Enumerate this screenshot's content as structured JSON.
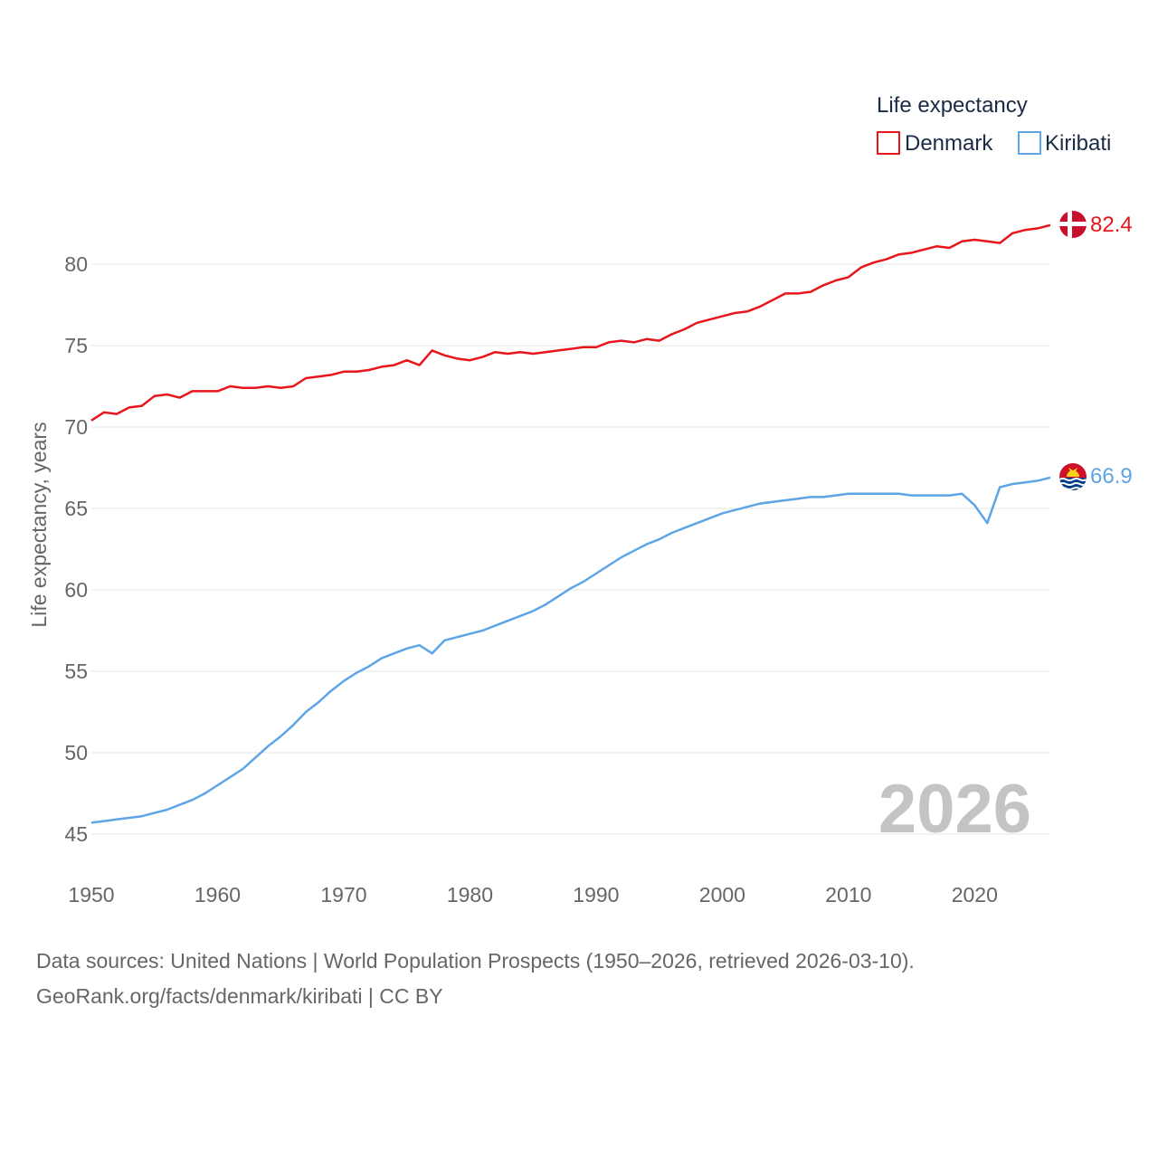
{
  "chart_data": {
    "type": "line",
    "title": "",
    "xlabel": "",
    "ylabel": "Life expectancy, years",
    "xlim": [
      1950,
      2026
    ],
    "ylim": [
      45,
      83
    ],
    "x_ticks": [
      1950,
      1960,
      1970,
      1980,
      1990,
      2000,
      2010,
      2020
    ],
    "y_ticks": [
      45,
      50,
      55,
      60,
      65,
      70,
      75,
      80
    ],
    "grid": true,
    "legend_title": "Life expectancy",
    "legend_position": "top-right",
    "watermark_year": "2026",
    "x": [
      1950,
      1951,
      1952,
      1953,
      1954,
      1955,
      1956,
      1957,
      1958,
      1959,
      1960,
      1961,
      1962,
      1963,
      1964,
      1965,
      1966,
      1967,
      1968,
      1969,
      1970,
      1971,
      1972,
      1973,
      1974,
      1975,
      1976,
      1977,
      1978,
      1979,
      1980,
      1981,
      1982,
      1983,
      1984,
      1985,
      1986,
      1987,
      1988,
      1989,
      1990,
      1991,
      1992,
      1993,
      1994,
      1995,
      1996,
      1997,
      1998,
      1999,
      2000,
      2001,
      2002,
      2003,
      2004,
      2005,
      2006,
      2007,
      2008,
      2009,
      2010,
      2011,
      2012,
      2013,
      2014,
      2015,
      2016,
      2017,
      2018,
      2019,
      2020,
      2021,
      2022,
      2023,
      2024,
      2025,
      2026
    ],
    "series": [
      {
        "name": "Denmark",
        "color": "#e8161c",
        "end_label": "82.4",
        "flag": "denmark",
        "values": [
          70.4,
          70.9,
          70.8,
          71.2,
          71.3,
          71.9,
          72.0,
          71.8,
          72.2,
          72.2,
          72.2,
          72.5,
          72.4,
          72.4,
          72.5,
          72.4,
          72.5,
          73.0,
          73.1,
          73.2,
          73.4,
          73.4,
          73.5,
          73.7,
          73.8,
          74.1,
          73.8,
          74.7,
          74.4,
          74.2,
          74.1,
          74.3,
          74.6,
          74.5,
          74.6,
          74.5,
          74.6,
          74.7,
          74.8,
          74.9,
          74.9,
          75.2,
          75.3,
          75.2,
          75.4,
          75.3,
          75.7,
          76.0,
          76.4,
          76.6,
          76.8,
          77.0,
          77.1,
          77.4,
          77.8,
          78.2,
          78.2,
          78.3,
          78.7,
          79.0,
          79.2,
          79.8,
          80.1,
          80.3,
          80.6,
          80.7,
          80.9,
          81.1,
          81.0,
          81.4,
          81.5,
          81.4,
          81.3,
          81.9,
          82.1,
          82.2,
          82.4
        ]
      },
      {
        "name": "Kiribati",
        "color": "#5ea5e8",
        "end_label": "66.9",
        "flag": "kiribati",
        "values": [
          45.7,
          45.8,
          45.9,
          46.0,
          46.1,
          46.3,
          46.5,
          46.8,
          47.1,
          47.5,
          48.0,
          48.5,
          49.0,
          49.7,
          50.4,
          51.0,
          51.7,
          52.5,
          53.1,
          53.8,
          54.4,
          54.9,
          55.3,
          55.8,
          56.1,
          56.4,
          56.6,
          56.1,
          56.9,
          57.1,
          57.3,
          57.5,
          57.8,
          58.1,
          58.4,
          58.7,
          59.1,
          59.6,
          60.1,
          60.5,
          61.0,
          61.5,
          62.0,
          62.4,
          62.8,
          63.1,
          63.5,
          63.8,
          64.1,
          64.4,
          64.7,
          64.9,
          65.1,
          65.3,
          65.4,
          65.5,
          65.6,
          65.7,
          65.7,
          65.8,
          65.9,
          65.9,
          65.9,
          65.9,
          65.9,
          65.8,
          65.8,
          65.8,
          65.8,
          65.9,
          65.2,
          64.1,
          66.3,
          66.5,
          66.6,
          66.7,
          66.9
        ]
      }
    ]
  },
  "source": {
    "line1": "Data sources: United Nations | World Population Prospects (1950–2026, retrieved 2026-03-10).",
    "line2": "GeoRank.org/facts/denmark/kiribati | CC BY"
  }
}
